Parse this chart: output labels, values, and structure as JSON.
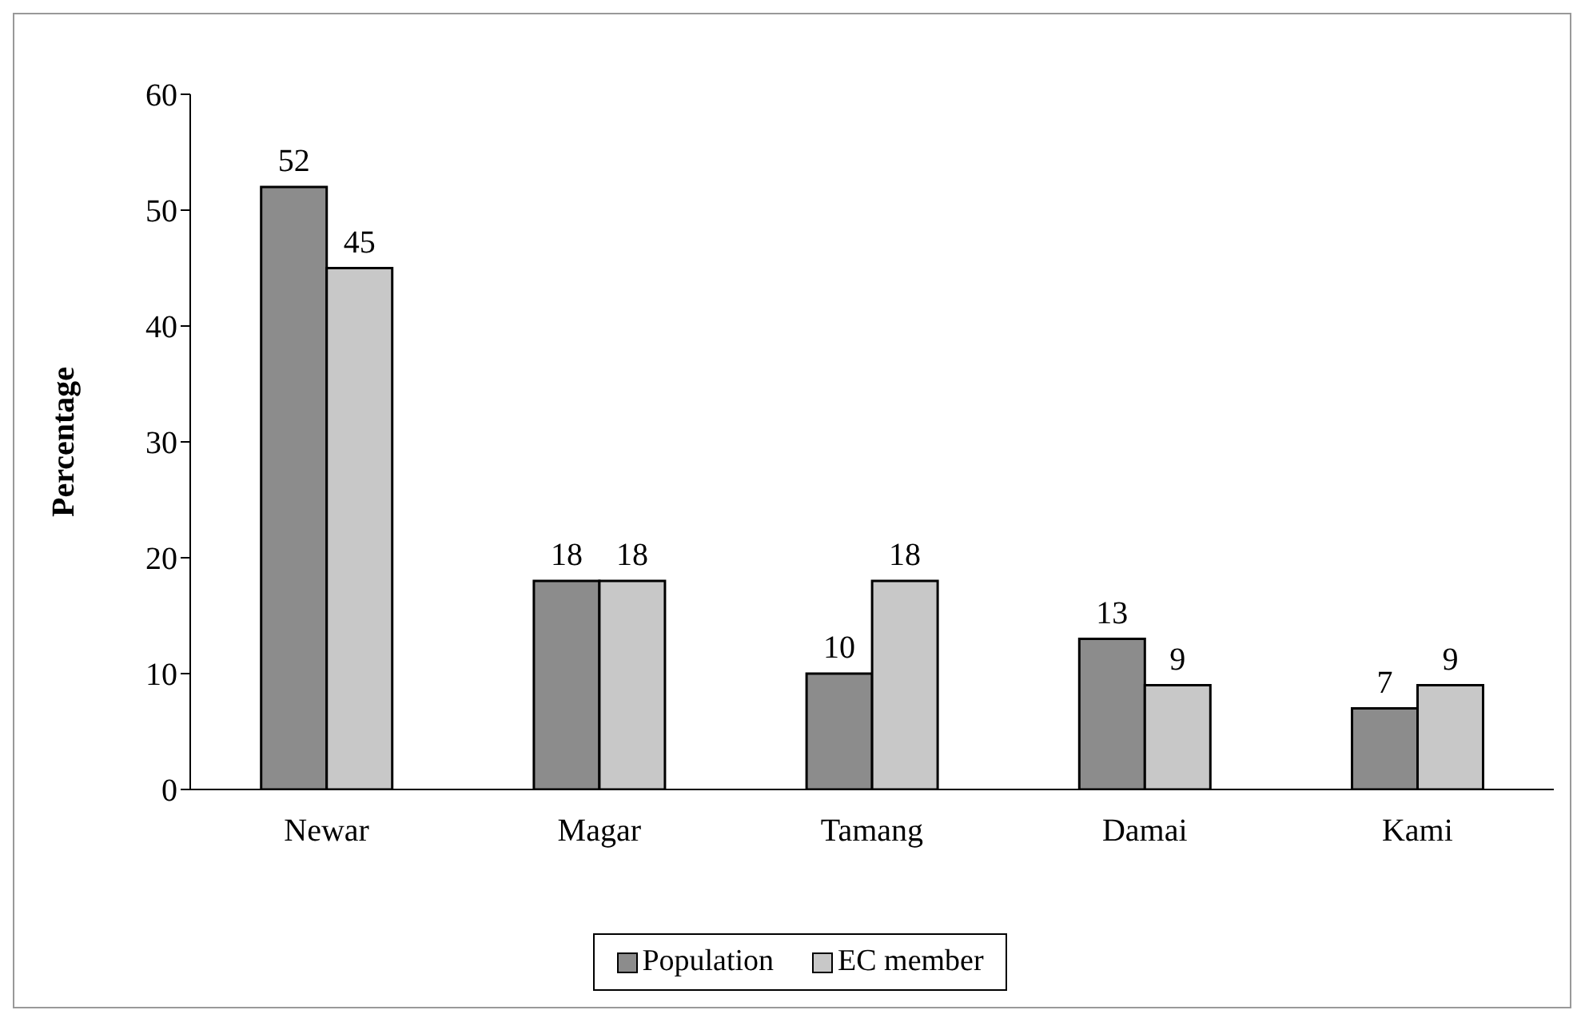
{
  "chart_data": {
    "type": "bar",
    "ylabel": "Percentage",
    "categories": [
      "Newar",
      "Magar",
      "Tamang",
      "Damai",
      "Kami"
    ],
    "series": [
      {
        "name": "Population",
        "color": "#8c8c8c",
        "values": [
          52,
          18,
          10,
          13,
          7
        ]
      },
      {
        "name": "EC member",
        "color": "#c8c8c8",
        "values": [
          45,
          18,
          18,
          9,
          9
        ]
      }
    ],
    "ylim": [
      0,
      60
    ],
    "yticks": [
      0,
      10,
      20,
      30,
      40,
      50,
      60
    ],
    "grid": false,
    "legend": "bottom",
    "data_labels": true
  }
}
